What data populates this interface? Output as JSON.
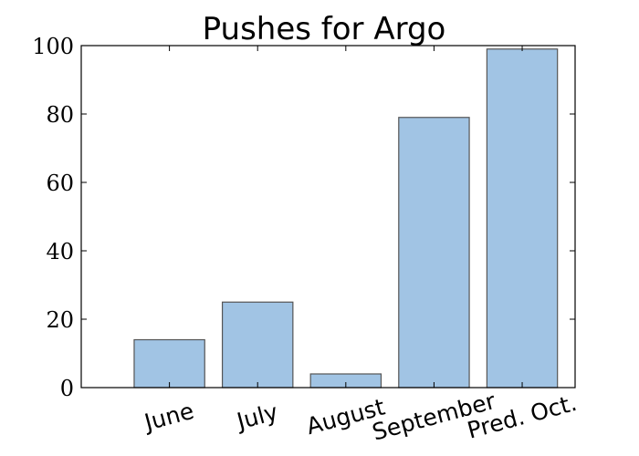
{
  "chart_data": {
    "type": "bar",
    "title": "Pushes for Argo",
    "categories": [
      "June",
      "July",
      "August",
      "September",
      "Pred. Oct."
    ],
    "values": [
      14,
      25,
      4,
      79,
      99
    ],
    "xlabel": "",
    "ylabel": "",
    "ylim": [
      0,
      100
    ],
    "yticks": [
      0,
      20,
      40,
      60,
      80,
      100
    ],
    "ytick_labels": [
      "0",
      "20",
      "40",
      "60",
      "80",
      "100"
    ],
    "xlim": [
      -0.6,
      5.0
    ],
    "grid": false,
    "legend": "none",
    "bar_color": "#a1c4e4",
    "bar_edge_color": "#555555",
    "xtick_rotation_deg": -15
  }
}
